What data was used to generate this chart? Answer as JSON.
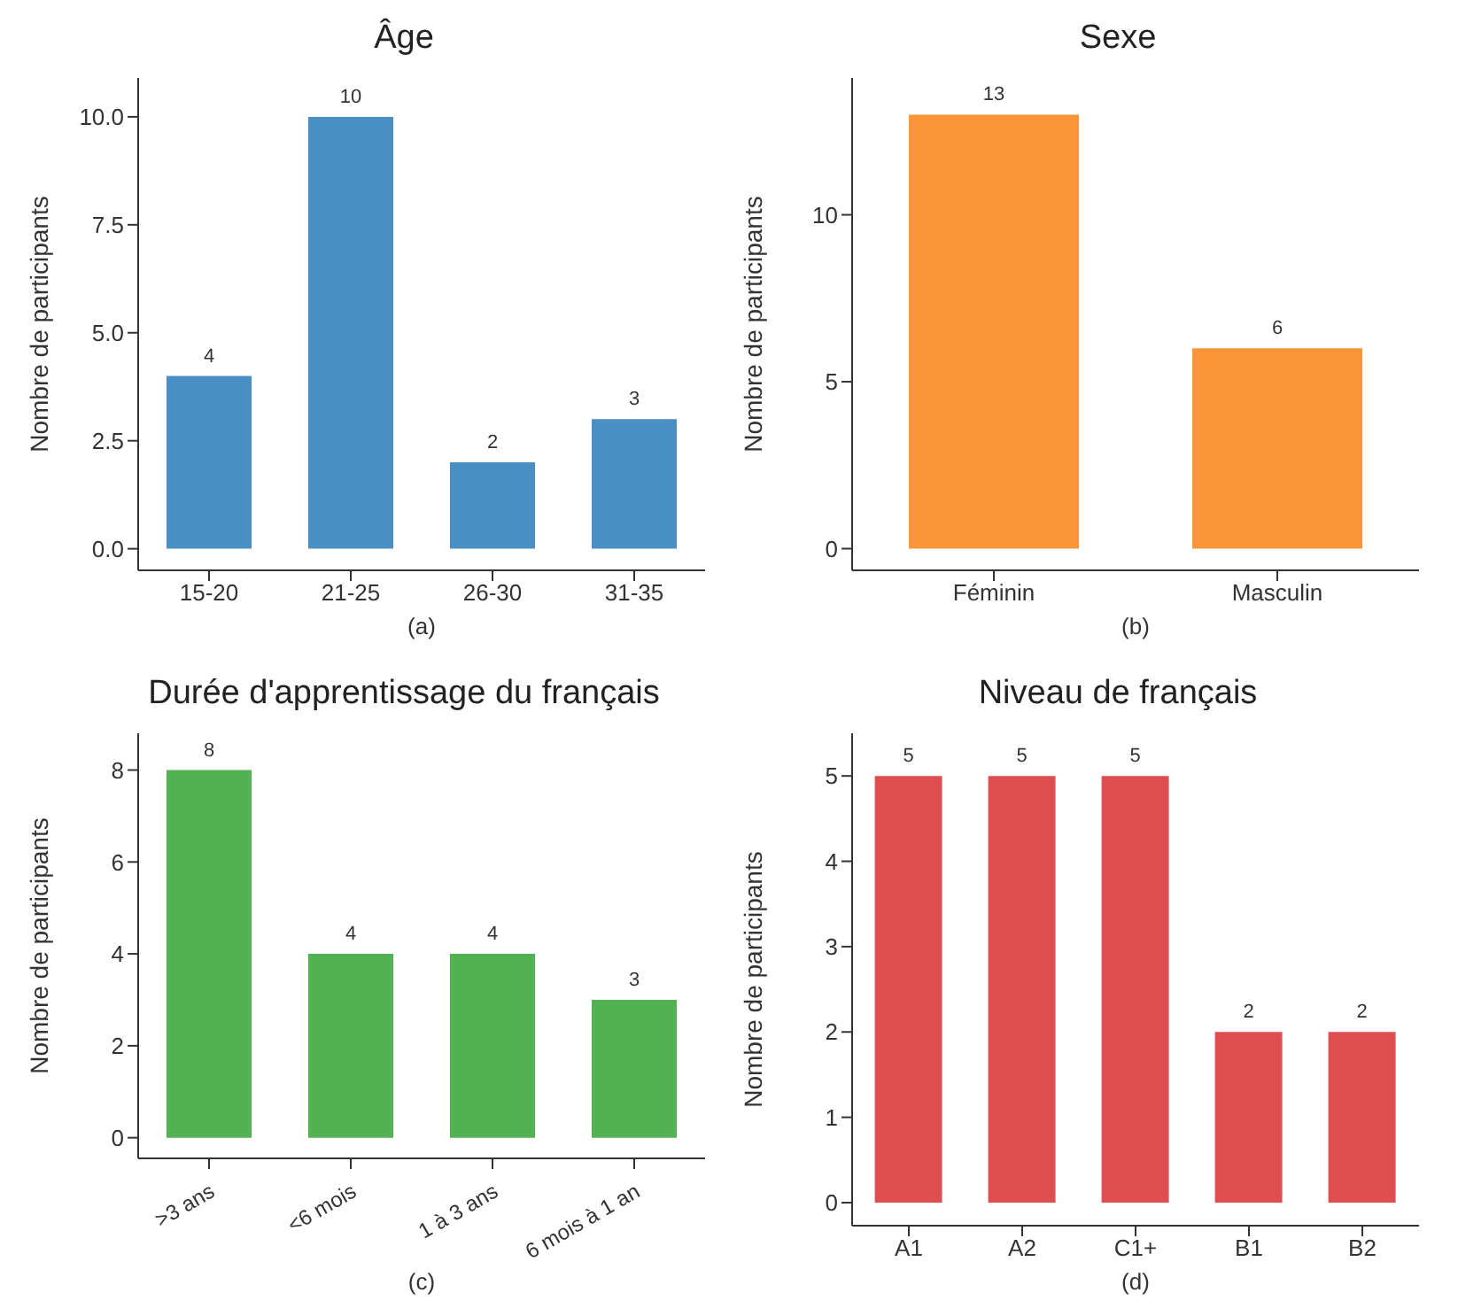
{
  "chart_data": [
    {
      "type": "bar",
      "title": "Âge",
      "xlabel": "(a)",
      "ylabel": "Nombre de participants",
      "categories": [
        "15-20",
        "21-25",
        "26-30",
        "31-35"
      ],
      "values": [
        4,
        10,
        2,
        3
      ],
      "color": "#4a8fc4",
      "ylim": [
        -0.5,
        10.9
      ],
      "yticks": [
        "0.0",
        "2.5",
        "5.0",
        "7.5",
        "10.0"
      ],
      "data_labels": true,
      "grid": false,
      "legend": false
    },
    {
      "type": "bar",
      "title": "Sexe",
      "xlabel": "(b)",
      "ylabel": "Nombre de participants",
      "categories": [
        "Féminin",
        "Masculin"
      ],
      "values": [
        13,
        6
      ],
      "color": "#fb9638",
      "ylim": [
        -0.65,
        14.1
      ],
      "yticks": [
        0,
        5,
        10
      ],
      "data_labels": true,
      "grid": false,
      "legend": false
    },
    {
      "type": "bar",
      "title": "Durée d'apprentissage du français",
      "xlabel": "(c)",
      "ylabel": "Nombre de participants",
      "categories": [
        ">3 ans",
        "<6 mois",
        "1 à 3 ans",
        "6 mois à 1 an"
      ],
      "values": [
        8,
        4,
        4,
        3
      ],
      "color": "#52b152",
      "ylim": [
        -0.45,
        8.8
      ],
      "yticks": [
        0,
        2,
        4,
        6,
        8
      ],
      "data_labels": true,
      "grid": false,
      "legend": false
    },
    {
      "type": "bar",
      "title": "Niveau de français",
      "xlabel": "(d)",
      "ylabel": "Nombre de participants",
      "categories": [
        "A1",
        "A2",
        "C1+",
        "B1",
        "B2"
      ],
      "values": [
        5,
        5,
        5,
        2,
        2
      ],
      "color": "#de4f52",
      "ylim": [
        -0.27,
        5.5
      ],
      "yticks": [
        0,
        1,
        2,
        3,
        4,
        5
      ],
      "data_labels": true,
      "grid": false,
      "legend": false
    }
  ]
}
